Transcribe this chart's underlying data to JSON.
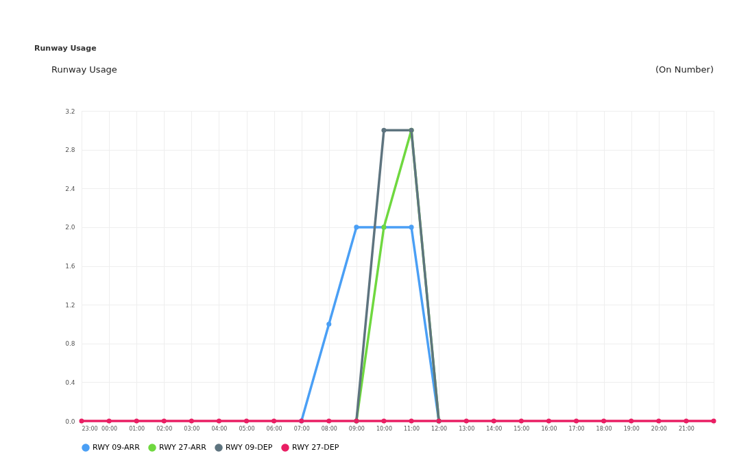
{
  "chart_data": {
    "type": "line",
    "title": "Runway Usage",
    "annotations": [
      "Runway Usage",
      "(On Number)"
    ],
    "categories": [
      "23:00",
      "00:00",
      "01:00",
      "02:00",
      "03:00",
      "04:00",
      "05:00",
      "06:00",
      "07:00",
      "08:00",
      "09:00",
      "10:00",
      "11:00",
      "12:00",
      "13:00",
      "14:00",
      "15:00",
      "16:00",
      "17:00",
      "18:00",
      "19:00",
      "20:00",
      "21:00",
      null
    ],
    "series": [
      {
        "name": "RWY 09-ARR",
        "color": "#4a9ff5",
        "values": [
          null,
          null,
          null,
          null,
          null,
          null,
          null,
          null,
          0,
          1,
          2,
          2,
          2,
          0,
          null,
          null,
          null,
          null,
          null,
          null,
          null,
          null,
          null,
          null
        ]
      },
      {
        "name": "RWY 27-ARR",
        "color": "#6fd83f",
        "values": [
          null,
          null,
          null,
          null,
          null,
          null,
          null,
          null,
          null,
          null,
          0,
          2,
          3,
          0,
          null,
          null,
          null,
          null,
          null,
          null,
          null,
          null,
          null,
          null
        ]
      },
      {
        "name": "RWY 09-DEP",
        "color": "#5e747f",
        "values": [
          null,
          null,
          null,
          null,
          null,
          null,
          null,
          null,
          null,
          null,
          0,
          3,
          3,
          0,
          null,
          null,
          null,
          null,
          null,
          null,
          null,
          null,
          null,
          null
        ]
      },
      {
        "name": "RWY 27-DEP",
        "color": "#e91e63",
        "values": [
          0,
          0,
          0,
          0,
          0,
          0,
          0,
          0,
          0,
          0,
          0,
          0,
          0,
          0,
          0,
          0,
          0,
          0,
          0,
          0,
          0,
          0,
          0,
          0
        ]
      }
    ],
    "ylim": [
      0,
      3.2
    ],
    "yticks": [
      {
        "value": 0,
        "label": "0.0"
      },
      0.4,
      0.8,
      {
        "value": 1.2,
        "label": "1.2"
      },
      1.6,
      {
        "value": 2,
        "label": "2.0"
      },
      2.4,
      2.8,
      {
        "value": 3.2,
        "label": "3.2"
      }
    ],
    "grid": true,
    "legend": "bottom",
    "marker": "circle",
    "line_style": "solid"
  }
}
